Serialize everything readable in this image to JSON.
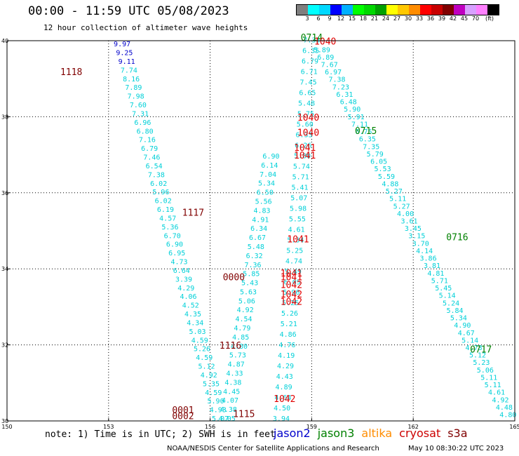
{
  "header": {
    "title": "00:00 - 11:59 UTC 05/08/2023",
    "subtitle": "12 hour collection of altimeter wave heights"
  },
  "colorbar": {
    "colors": [
      "#7f7f7f",
      "#00ffff",
      "#00d8ff",
      "#0000ff",
      "#00b0ff",
      "#00ff00",
      "#00d800",
      "#00a000",
      "#ffff00",
      "#ffc800",
      "#ff8c00",
      "#ff0000",
      "#c80000",
      "#800000",
      "#c000c0",
      "#d8a0ff",
      "#ff80ff",
      "#000000"
    ],
    "labels": [
      "3",
      "6",
      "9",
      "12",
      "15",
      "18",
      "21",
      "24",
      "27",
      "30",
      "33",
      "36",
      "39",
      "42",
      "45",
      "70",
      "(ft)"
    ],
    "unit": "(ft)"
  },
  "map": {
    "lon_ticks": [
      "150",
      "153",
      "156",
      "159",
      "162",
      "165"
    ],
    "lat_ticks": [
      "30",
      "32",
      "34",
      "36",
      "38",
      "40"
    ],
    "colors": {
      "swh": "#00d0d8",
      "swh_dark": "#0000cc",
      "pressure_low": "#e00000",
      "pressure_high": "#800000",
      "pressure_green": "#008000"
    },
    "pressure_labels": [
      {
        "text": "1118",
        "lon": 151.9,
        "lat": 39.1,
        "color": "#800000"
      },
      {
        "text": "1117",
        "lon": 155.5,
        "lat": 35.4,
        "color": "#800000"
      },
      {
        "text": "0000",
        "lon": 156.7,
        "lat": 33.7,
        "color": "#800000"
      },
      {
        "text": "1116",
        "lon": 156.6,
        "lat": 31.9,
        "color": "#800000"
      },
      {
        "text": "0001",
        "lon": 155.2,
        "lat": 30.2,
        "color": "#800000"
      },
      {
        "text": "0002",
        "lon": 155.2,
        "lat": 30.05,
        "color": "#800000"
      },
      {
        "text": "1115",
        "lon": 157.0,
        "lat": 30.1,
        "color": "#800000"
      },
      {
        "text": "1042",
        "lon": 158.2,
        "lat": 30.5,
        "color": "#e00000"
      },
      {
        "text": "0714",
        "lon": 159.0,
        "lat": 40.0,
        "color": "#008000"
      },
      {
        "text": "1040",
        "lon": 159.4,
        "lat": 39.9,
        "color": "#e00000"
      },
      {
        "text": "1040",
        "lon": 158.9,
        "lat": 37.9,
        "color": "#e00000"
      },
      {
        "text": "1040",
        "lon": 158.9,
        "lat": 37.5,
        "color": "#e00000"
      },
      {
        "text": "0715",
        "lon": 160.6,
        "lat": 37.55,
        "color": "#008000"
      },
      {
        "text": "1041",
        "lon": 158.8,
        "lat": 37.1,
        "color": "#e00000"
      },
      {
        "text": "1041",
        "lon": 158.8,
        "lat": 36.9,
        "color": "#e00000"
      },
      {
        "text": "1041",
        "lon": 158.6,
        "lat": 34.7,
        "color": "#e00000"
      },
      {
        "text": "1041",
        "lon": 158.4,
        "lat": 33.8,
        "color": "#e00000"
      },
      {
        "text": "1041",
        "lon": 158.4,
        "lat": 33.7,
        "color": "#e00000"
      },
      {
        "text": "1042",
        "lon": 158.4,
        "lat": 33.5,
        "color": "#e00000"
      },
      {
        "text": "1042",
        "lon": 158.4,
        "lat": 33.25,
        "color": "#e00000"
      },
      {
        "text": "1042",
        "lon": 158.4,
        "lat": 33.05,
        "color": "#e00000"
      },
      {
        "text": "0716",
        "lon": 163.3,
        "lat": 34.75,
        "color": "#008000"
      },
      {
        "text": "0717",
        "lon": 164.0,
        "lat": 31.8,
        "color": "#008000"
      }
    ],
    "tracks": [
      {
        "name": "track-a",
        "lon_start": 153.4,
        "lat_start": 39.85,
        "lon_end": 156.3,
        "lat_end": 30.0,
        "values": [
          "9.97",
          "9.25",
          "9.11",
          "7.74",
          "8.16",
          "7.89",
          "7.98",
          "7.60",
          "7.31",
          "6.96",
          "6.80",
          "7.16",
          "6.79",
          "7.46",
          "6.54",
          "7.38",
          "6.02",
          "5.96",
          "6.02",
          "6.19",
          "4.57",
          "5.36",
          "6.70",
          "6.90",
          "6.95",
          "4.73",
          "6.64",
          "3.39",
          "4.29",
          "4.06",
          "4.52",
          "4.35",
          "4.34",
          "5.03",
          "4.59",
          "5.26",
          "4.59",
          "5.12",
          "4.92",
          "5.35",
          "4.59",
          "5.90",
          "4.93",
          "5.07"
        ],
        "dark_count": 3
      },
      {
        "name": "track-b",
        "lon_start": 157.8,
        "lat_start": 36.9,
        "lon_end": 156.5,
        "lat_end": 30.0,
        "values": [
          "6.90",
          "6.14",
          "7.04",
          "5.34",
          "6.50",
          "5.56",
          "4.83",
          "4.91",
          "6.34",
          "6.67",
          "5.48",
          "6.32",
          "7.36",
          "5.85",
          "5.43",
          "5.63",
          "5.06",
          "4.92",
          "4.54",
          "4.79",
          "4.85",
          "4.80",
          "5.73",
          "4.87",
          "4.33",
          "4.38",
          "4.45",
          "4.07",
          "4.38",
          "4.05"
        ],
        "dark_count": 0
      },
      {
        "name": "track-c",
        "lon_start": 159.0,
        "lat_start": 39.95,
        "lon_end": 158.1,
        "lat_end": 30.0,
        "values": [
          "7.33",
          "6.35",
          "6.79",
          "6.71",
          "7.45",
          "6.65",
          "5.48",
          "5.75",
          "5.60",
          "6.33",
          "6.26",
          "5.80",
          "5.74",
          "5.71",
          "5.41",
          "5.07",
          "5.98",
          "5.55",
          "4.61",
          "5.34",
          "5.25",
          "4.74",
          "5.49",
          "6.05",
          "5.96",
          "5.25",
          "5.26",
          "5.21",
          "4.86",
          "4.76",
          "4.19",
          "4.29",
          "4.43",
          "4.89",
          "4.64",
          "4.50",
          "3.94"
        ],
        "dark_count": 0
      },
      {
        "name": "track-d",
        "lon_start": 159.3,
        "lat_start": 39.7,
        "lon_end": 164.8,
        "lat_end": 30.1,
        "values": [
          "5.89",
          "6.89",
          "7.67",
          "6.97",
          "7.38",
          "7.23",
          "6.31",
          "6.48",
          "5.90",
          "5.91",
          "7.11",
          "6.75",
          "6.35",
          "7.35",
          "5.79",
          "6.05",
          "5.53",
          "5.59",
          "4.88",
          "5.27",
          "5.11",
          "5.27",
          "4.00",
          "3.61",
          "3.45",
          "3.15",
          "3.70",
          "4.14",
          "3.86",
          "3.81",
          "4.81",
          "5.71",
          "5.45",
          "5.14",
          "5.24",
          "5.84",
          "5.34",
          "4.90",
          "4.67",
          "5.14",
          "4.73",
          "5.12",
          "5.23",
          "5.06",
          "5.11",
          "5.11",
          "4.61",
          "4.92",
          "4.48",
          "4.80"
        ],
        "dark_count": 0
      }
    ]
  },
  "footer": {
    "note": "note: 1) Time is in UTC; 2) SWH is in feet",
    "legend": [
      {
        "label": "jason2",
        "color": "#0000cc"
      },
      {
        "label": "jason3",
        "color": "#008000"
      },
      {
        "label": "altika",
        "color": "#ff8c00"
      },
      {
        "label": "cryosat",
        "color": "#cc0000"
      },
      {
        "label": "s3a",
        "color": "#800000"
      }
    ],
    "credit": "NOAA/NESDIS Center for Satellite Applications and Research",
    "timestamp": "May 10 08:30:22 UTC 2023"
  }
}
